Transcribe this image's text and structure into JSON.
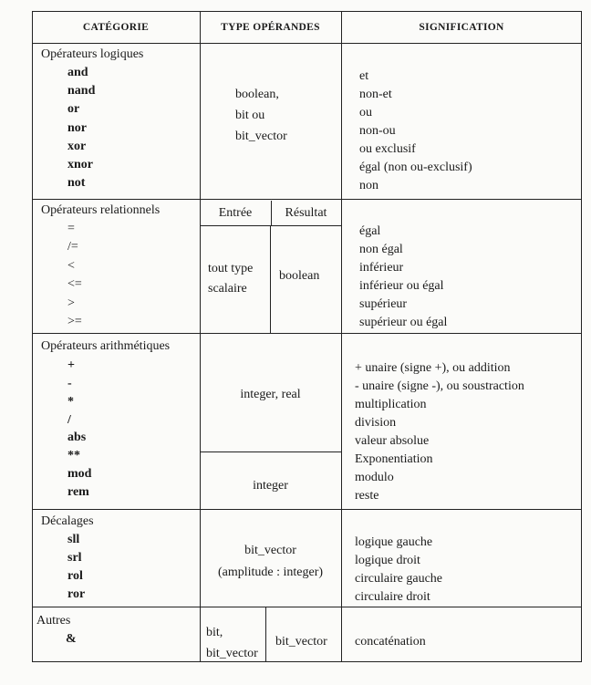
{
  "headers": {
    "category": "CATÉGORIE",
    "operands": "TYPE OPÉRANDES",
    "meaning": "SIGNIFICATION"
  },
  "logical": {
    "title": "Opérateurs logiques",
    "ops": [
      "and",
      "nand",
      "or",
      "nor",
      "xor",
      "xnor",
      "not"
    ],
    "operands": [
      "boolean,",
      "bit ou",
      "bit_vector"
    ],
    "meanings": [
      "et",
      "non-et",
      "ou",
      "non-ou",
      "ou exclusif",
      "égal (non ou-exclusif)",
      "non"
    ]
  },
  "relational": {
    "title": "Opérateurs relationnels",
    "ops": [
      "=",
      "/=",
      "<",
      "<=",
      ">",
      ">="
    ],
    "input_header": "Entrée",
    "result_header": "Résultat",
    "input": [
      "tout type",
      "scalaire"
    ],
    "result": "boolean",
    "meanings": [
      "égal",
      "non égal",
      "inférieur",
      "inférieur ou égal",
      "supérieur",
      "supérieur ou égal"
    ]
  },
  "arithmetic": {
    "title": "Opérateurs arithmétiques",
    "ops": [
      "+",
      "-",
      "*",
      "/",
      "abs",
      "**",
      "mod",
      "rem"
    ],
    "operands_1": "integer, real",
    "operands_2": "integer",
    "meanings": [
      "+ unaire (signe +), ou addition",
      "- unaire (signe -), ou soustraction",
      "multiplication",
      "division",
      "valeur absolue",
      "Exponentiation",
      "modulo",
      "reste"
    ]
  },
  "shift": {
    "title": "Décalages",
    "ops": [
      "sll",
      "srl",
      "rol",
      "ror"
    ],
    "operands": [
      "bit_vector",
      "(amplitude : integer)"
    ],
    "meanings": [
      "logique gauche",
      "logique droit",
      "circulaire gauche",
      "circulaire droit"
    ]
  },
  "others": {
    "title": "Autres",
    "ops": [
      "&"
    ],
    "input": [
      "bit,",
      "bit_vector"
    ],
    "result": "bit_vector",
    "meanings": [
      "concaténation"
    ]
  }
}
